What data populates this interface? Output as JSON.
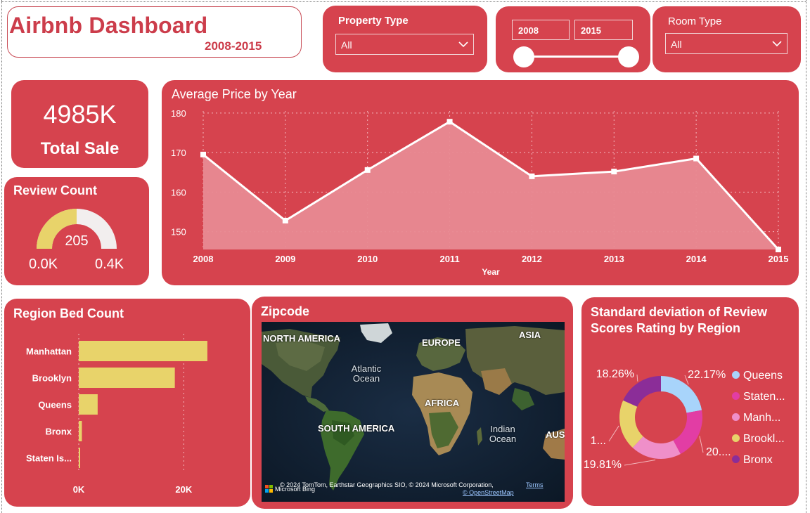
{
  "header": {
    "title": "Airbnb Dashboard",
    "subtitle": "2008-2015"
  },
  "property_filter": {
    "label": "Property Type",
    "value": "All"
  },
  "year_slider": {
    "start": "2008",
    "end": "2015"
  },
  "room_filter": {
    "label": "Room Type",
    "value": "All"
  },
  "total_sale": {
    "value": "4985K",
    "label": "Total Sale"
  },
  "review_count": {
    "title": "Review Count",
    "value": "205",
    "min_label": "0.0K",
    "max_label": "0.4K",
    "fill_fraction": 0.5,
    "fill_color": "#e8d36a",
    "track_color": "#f2eeee"
  },
  "price_chart": {
    "title": "Average Price by Year",
    "chart_data": {
      "type": "area",
      "title": "Average Price by Year",
      "xlabel": "Year",
      "ylabel": "",
      "x": [
        "2008",
        "2009",
        "2010",
        "2011",
        "2012",
        "2013",
        "2014",
        "2015"
      ],
      "values": [
        169.5,
        152.8,
        165.6,
        177.8,
        164.0,
        165.2,
        168.5,
        145.5
      ],
      "yticks": [
        150,
        160,
        170,
        180
      ],
      "ylim": [
        145.5,
        180.5
      ],
      "grid": true,
      "line_color": "#ffffff",
      "fill_color": "#e88a92"
    }
  },
  "bed_chart": {
    "title": "Region Bed Count",
    "chart_data": {
      "type": "bar",
      "orientation": "horizontal",
      "title": "Region Bed Count",
      "categories": [
        "Manhattan",
        "Brooklyn",
        "Queens",
        "Bronx",
        "Staten Is..."
      ],
      "values": [
        24500,
        18300,
        3600,
        600,
        250
      ],
      "xticks": [
        "0K",
        "20K"
      ],
      "xtick_values": [
        0,
        20000
      ],
      "xlim": [
        0,
        30000
      ],
      "bar_color": "#e8d36a"
    }
  },
  "map": {
    "title": "Zipcode",
    "labels": [
      "NORTH AMERICA",
      "EUROPE",
      "ASIA",
      "AFRICA",
      "SOUTH AMERICA",
      "AUS"
    ],
    "oceans": [
      "Atlantic Ocean",
      "Indian Ocean"
    ],
    "attribution": "© 2024 TomTom, Earthstar Geographics SIO, © 2024 Microsoft Corporation,",
    "terms": "Terms",
    "osm": "© OpenStreetMap",
    "brand": "Microsoft Bing"
  },
  "donut": {
    "title_line1": "Standard deviation of Review",
    "title_line2": "Scores Rating by Region",
    "chart_data": {
      "type": "pie",
      "variant": "donut",
      "title": "Standard deviation of Review Scores Rating by Region",
      "slices": [
        {
          "name": "Queens",
          "value": 22.17,
          "color": "#a8d4fb"
        },
        {
          "name": "Staten...",
          "value": 20.0,
          "color": "#e23da4"
        },
        {
          "name": "Manh...",
          "value": 19.81,
          "color": "#ef8fc9"
        },
        {
          "name": "Brookl...",
          "value": 19.76,
          "color": "#e8d36a"
        },
        {
          "name": "Bronx",
          "value": 18.26,
          "color": "#8b2d98"
        }
      ],
      "data_labels": [
        "22.17%",
        "20....",
        "19.81%",
        "1...",
        "18.26%"
      ]
    }
  }
}
